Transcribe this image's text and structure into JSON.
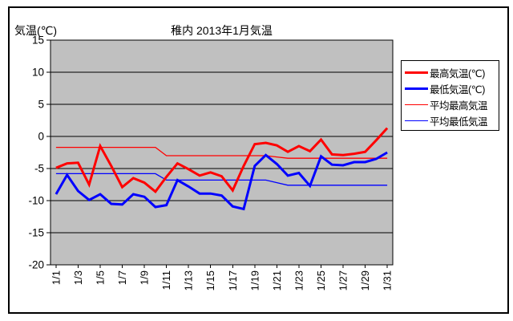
{
  "window": {
    "background": "#ffffff",
    "border_color": "#000000"
  },
  "chart_data": {
    "type": "line",
    "title": "稚内 2013年1月気温",
    "y_axis_title": "気温(℃)",
    "xlabel": "",
    "ylabel": "気温(℃)",
    "ylim": [
      -20,
      15
    ],
    "y_tick_interval": 5,
    "grid": "horizontal, black, every 5°C",
    "plot_background": "#c0c0c0",
    "legend_position": "right",
    "y_tick_labels": [
      "15",
      "10",
      "5",
      "0",
      "-5",
      "-10",
      "-15",
      "-20"
    ],
    "x_tick_labels": [
      "1/1",
      "1/3",
      "1/5",
      "1/7",
      "1/9",
      "1/11",
      "1/13",
      "1/15",
      "1/17",
      "1/19",
      "1/21",
      "1/23",
      "1/25",
      "1/27",
      "1/29",
      "1/31"
    ],
    "categories": [
      "1/1",
      "1/2",
      "1/3",
      "1/4",
      "1/5",
      "1/6",
      "1/7",
      "1/8",
      "1/9",
      "1/10",
      "1/11",
      "1/12",
      "1/13",
      "1/14",
      "1/15",
      "1/16",
      "1/17",
      "1/18",
      "1/19",
      "1/20",
      "1/21",
      "1/22",
      "1/23",
      "1/24",
      "1/25",
      "1/26",
      "1/27",
      "1/28",
      "1/29",
      "1/30",
      "1/31"
    ],
    "series": [
      {
        "name": "最高気温(℃)",
        "color": "#ff0000",
        "line_width": 3,
        "values": [
          -4.9,
          -4.2,
          -4.1,
          -7.5,
          -1.5,
          -4.6,
          -7.9,
          -6.5,
          -7.2,
          -8.6,
          -6.3,
          -4.2,
          -5.1,
          -6.1,
          -5.6,
          -6.2,
          -8.4,
          -4.6,
          -1.2,
          -1.0,
          -1.4,
          -2.4,
          -1.5,
          -2.3,
          -0.5,
          -2.8,
          -2.9,
          -2.7,
          -2.4,
          -0.6,
          1.3
        ]
      },
      {
        "name": "最低気温(℃)",
        "color": "#0000ff",
        "line_width": 3,
        "values": [
          -9.0,
          -6.0,
          -8.5,
          -9.9,
          -9.0,
          -10.5,
          -10.6,
          -9.0,
          -9.4,
          -11.0,
          -10.7,
          -6.8,
          -7.8,
          -8.9,
          -8.9,
          -9.2,
          -10.9,
          -11.3,
          -4.6,
          -2.9,
          -4.3,
          -6.1,
          -5.7,
          -7.7,
          -3.1,
          -4.4,
          -4.5,
          -4.0,
          -4.0,
          -3.5,
          -2.5
        ]
      },
      {
        "name": "平均最高気温",
        "color": "#ff0000",
        "line_width": 1.3,
        "values": [
          -1.7,
          -1.7,
          -1.7,
          -1.7,
          -1.7,
          -1.7,
          -1.7,
          -1.7,
          -1.7,
          -1.7,
          -3.0,
          -3.0,
          -3.0,
          -3.0,
          -3.0,
          -3.0,
          -3.0,
          -3.0,
          -3.0,
          -3.0,
          -3.2,
          -3.4,
          -3.4,
          -3.4,
          -3.4,
          -3.4,
          -3.4,
          -3.4,
          -3.4,
          -3.4,
          -3.4
        ]
      },
      {
        "name": "平均最低気温",
        "color": "#0000ff",
        "line_width": 1.3,
        "values": [
          -5.8,
          -5.8,
          -5.8,
          -5.8,
          -5.8,
          -5.8,
          -5.8,
          -5.8,
          -5.8,
          -5.8,
          -6.8,
          -6.8,
          -6.8,
          -6.8,
          -6.8,
          -6.8,
          -6.8,
          -6.8,
          -6.8,
          -6.8,
          -7.2,
          -7.6,
          -7.6,
          -7.6,
          -7.6,
          -7.6,
          -7.6,
          -7.6,
          -7.6,
          -7.6,
          -7.6
        ]
      }
    ]
  }
}
